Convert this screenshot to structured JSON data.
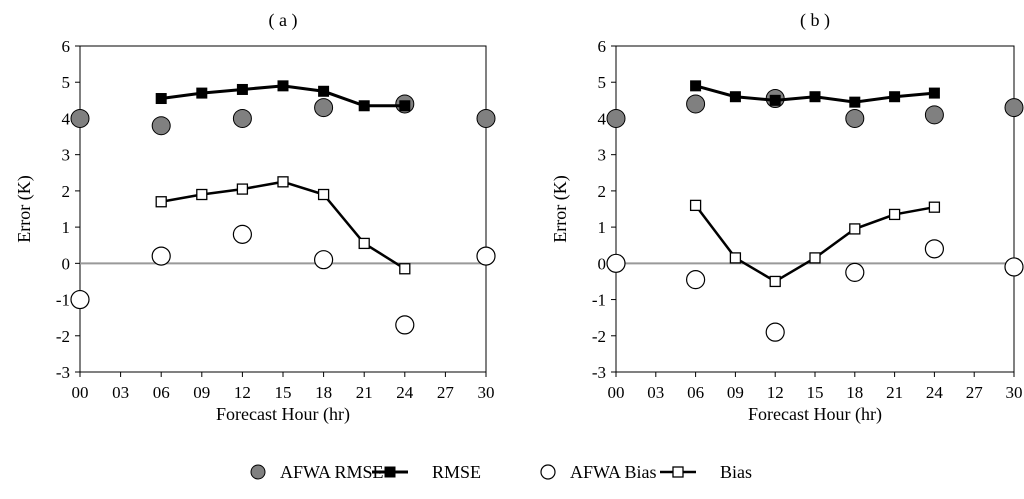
{
  "chart_data": [
    {
      "type": "line",
      "title": "( a )",
      "xlabel": "Forecast Hour (hr)",
      "ylabel": "Error (K)",
      "x_ticks": [
        "00",
        "03",
        "06",
        "09",
        "12",
        "15",
        "18",
        "21",
        "24",
        "27",
        "30"
      ],
      "ylim": [
        -3,
        6
      ],
      "y_ticks": [
        "-3",
        "-2",
        "-1",
        "0",
        "1",
        "2",
        "3",
        "4",
        "5",
        "6"
      ],
      "grid": false,
      "zero_line": true,
      "series": [
        {
          "name": "AFWA RMSE",
          "style": "gray-filled-circle",
          "x": [
            0,
            6,
            12,
            18,
            24,
            30
          ],
          "y": [
            4.0,
            3.8,
            4.0,
            4.3,
            4.4,
            4.0
          ]
        },
        {
          "name": "RMSE",
          "style": "black-square-line",
          "x": [
            6,
            9,
            12,
            15,
            18,
            21,
            24
          ],
          "y": [
            4.55,
            4.7,
            4.8,
            4.9,
            4.75,
            4.35,
            4.35
          ]
        },
        {
          "name": "AFWA Bias",
          "style": "open-circle",
          "x": [
            0,
            6,
            12,
            18,
            24,
            30
          ],
          "y": [
            -1.0,
            0.2,
            0.8,
            0.1,
            -1.7,
            0.2
          ]
        },
        {
          "name": "Bias",
          "style": "open-square-line",
          "x": [
            6,
            9,
            12,
            15,
            18,
            21,
            24
          ],
          "y": [
            1.7,
            1.9,
            2.05,
            2.25,
            1.9,
            0.55,
            -0.15
          ]
        }
      ]
    },
    {
      "type": "line",
      "title": "( b )",
      "xlabel": "Forecast Hour (hr)",
      "ylabel": "Error (K)",
      "x_ticks": [
        "00",
        "03",
        "06",
        "09",
        "12",
        "15",
        "18",
        "21",
        "24",
        "27",
        "30"
      ],
      "ylim": [
        -3,
        6
      ],
      "y_ticks": [
        "-3",
        "-2",
        "-1",
        "0",
        "1",
        "2",
        "3",
        "4",
        "5",
        "6"
      ],
      "grid": false,
      "zero_line": true,
      "series": [
        {
          "name": "AFWA RMSE",
          "style": "gray-filled-circle",
          "x": [
            0,
            6,
            12,
            18,
            24,
            30
          ],
          "y": [
            4.0,
            4.4,
            4.55,
            4.0,
            4.1,
            4.3
          ]
        },
        {
          "name": "RMSE",
          "style": "black-square-line",
          "x": [
            6,
            9,
            12,
            15,
            18,
            21,
            24
          ],
          "y": [
            4.9,
            4.6,
            4.5,
            4.6,
            4.45,
            4.6,
            4.7
          ]
        },
        {
          "name": "AFWA Bias",
          "style": "open-circle",
          "x": [
            0,
            6,
            12,
            18,
            24,
            30
          ],
          "y": [
            0.0,
            -0.45,
            -1.9,
            -0.25,
            0.4,
            -0.1
          ]
        },
        {
          "name": "Bias",
          "style": "open-square-line",
          "x": [
            6,
            9,
            12,
            15,
            18,
            21,
            24
          ],
          "y": [
            1.6,
            0.15,
            -0.5,
            0.15,
            0.95,
            1.35,
            1.55
          ]
        }
      ]
    }
  ],
  "legend": {
    "placement": "bottom",
    "items": [
      {
        "label": "AFWA RMSE",
        "style": "gray-filled-circle"
      },
      {
        "label": "RMSE",
        "style": "black-square-line"
      },
      {
        "label": "AFWA Bias",
        "style": "open-circle"
      },
      {
        "label": "Bias",
        "style": "open-square-line"
      }
    ]
  },
  "colors": {
    "gray_marker": "#808080",
    "line": "#000000",
    "zero_line": "#999999",
    "frame": "#000000"
  }
}
